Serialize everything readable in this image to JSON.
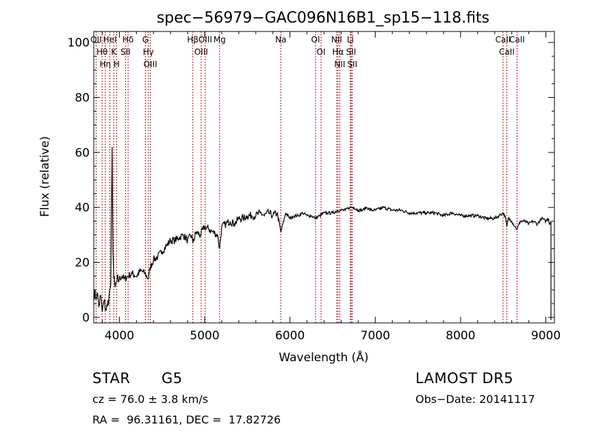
{
  "chart_data": {
    "type": "line",
    "title": "spec−56979−GAC096N16B1_sp15−118.fits",
    "xlabel": "Wavelength (Å)",
    "ylabel": "Flux (relative)",
    "xlim": [
      3700,
      9100
    ],
    "ylim": [
      -2,
      104
    ],
    "xticks": [
      4000,
      5000,
      6000,
      7000,
      8000,
      9000
    ],
    "yticks": [
      0,
      20,
      40,
      60,
      80,
      100
    ],
    "grid": false,
    "series": [
      {
        "x": [
          3700,
          3720,
          3740,
          3760,
          3780,
          3800,
          3820,
          3840,
          3860,
          3880,
          3900,
          3915,
          3925,
          3935,
          3950,
          3970,
          4000,
          4030,
          4060,
          4100,
          4150,
          4200,
          4250,
          4300,
          4340,
          4360,
          4400,
          4450,
          4500,
          4550,
          4600,
          4650,
          4700,
          4750,
          4800,
          4850,
          4861,
          4900,
          4950,
          5000,
          5050,
          5100,
          5150,
          5175,
          5200,
          5250,
          5300,
          5350,
          5400,
          5450,
          5500,
          5550,
          5600,
          5650,
          5700,
          5750,
          5800,
          5850,
          5893,
          5950,
          6000,
          6050,
          6100,
          6150,
          6200,
          6250,
          6300,
          6350,
          6400,
          6450,
          6500,
          6563,
          6600,
          6650,
          6700,
          6750,
          6800,
          6850,
          6900,
          6950,
          7000,
          7100,
          7200,
          7300,
          7400,
          7500,
          7600,
          7700,
          7800,
          7900,
          8000,
          8100,
          8200,
          8300,
          8400,
          8450,
          8498,
          8520,
          8542,
          8560,
          8600,
          8662,
          8700,
          8750,
          8800,
          8850,
          8900,
          8950,
          9000,
          9030,
          9040,
          9060
        ],
        "y": [
          10,
          7,
          9,
          4,
          8,
          2,
          6,
          3,
          4,
          8,
          12,
          62,
          24,
          14,
          11,
          13,
          14,
          15,
          14,
          15,
          16,
          15,
          17,
          16,
          14,
          18,
          21,
          22,
          24,
          26,
          28,
          28,
          29,
          30,
          28,
          30,
          27,
          31,
          30,
          33,
          32,
          31,
          30,
          25,
          33,
          34,
          35,
          34,
          36,
          36,
          37,
          37,
          37,
          38,
          37,
          38,
          37,
          38,
          31,
          38,
          36,
          37,
          37,
          38,
          37,
          37,
          36,
          37,
          38,
          38,
          38,
          39,
          39,
          39,
          40,
          40,
          39,
          39,
          40,
          39,
          39,
          40,
          39,
          39,
          38,
          38,
          38,
          38,
          37,
          38,
          37,
          37,
          37,
          36,
          36,
          37,
          38,
          37,
          33,
          36,
          35,
          32,
          35,
          35,
          34,
          35,
          34,
          36,
          35,
          36,
          34,
          35
        ]
      }
    ],
    "lines": [
      {
        "name": "OII",
        "x": 3727
      },
      {
        "name": "Hθ",
        "x": 3798
      },
      {
        "name": "Hη",
        "x": 3835
      },
      {
        "name": "HeI",
        "x": 3889
      },
      {
        "name": "K",
        "x": 3934
      },
      {
        "name": "H",
        "x": 3968
      },
      {
        "name": "Hδ",
        "x": 4102
      },
      {
        "name": "SII",
        "x": 4072
      },
      {
        "name": "G",
        "x": 4305
      },
      {
        "name": "Hγ",
        "x": 4340
      },
      {
        "name": "OIII",
        "x": 4363
      },
      {
        "name": "Hβ",
        "x": 4861
      },
      {
        "name": "OIII",
        "x": 4959
      },
      {
        "name": "OIII",
        "x": 5007
      },
      {
        "name": "Mg",
        "x": 5175
      },
      {
        "name": "Na",
        "x": 5893
      },
      {
        "name": "OI",
        "x": 6300
      },
      {
        "name": "OI",
        "x": 6364
      },
      {
        "name": "NII",
        "x": 6548
      },
      {
        "name": "Hα",
        "x": 6563
      },
      {
        "name": "NII",
        "x": 6584
      },
      {
        "name": "Li",
        "x": 6708
      },
      {
        "name": "SII",
        "x": 6717
      },
      {
        "name": "SII",
        "x": 6731
      },
      {
        "name": "CaII",
        "x": 8498
      },
      {
        "name": "CaII",
        "x": 8542
      },
      {
        "name": "CaII",
        "x": 8662
      }
    ],
    "line_color": "#c00000",
    "spectrum_color": "#000000"
  },
  "info": {
    "class_label": "STAR",
    "subclass_label": "G5",
    "survey": "LAMOST DR5",
    "redshift": "cz = 76.0 ± 3.8 km/s",
    "obs_date": "Obs−Date: 20141117",
    "coords": "RA =  96.31161, DEC =  17.82726"
  }
}
